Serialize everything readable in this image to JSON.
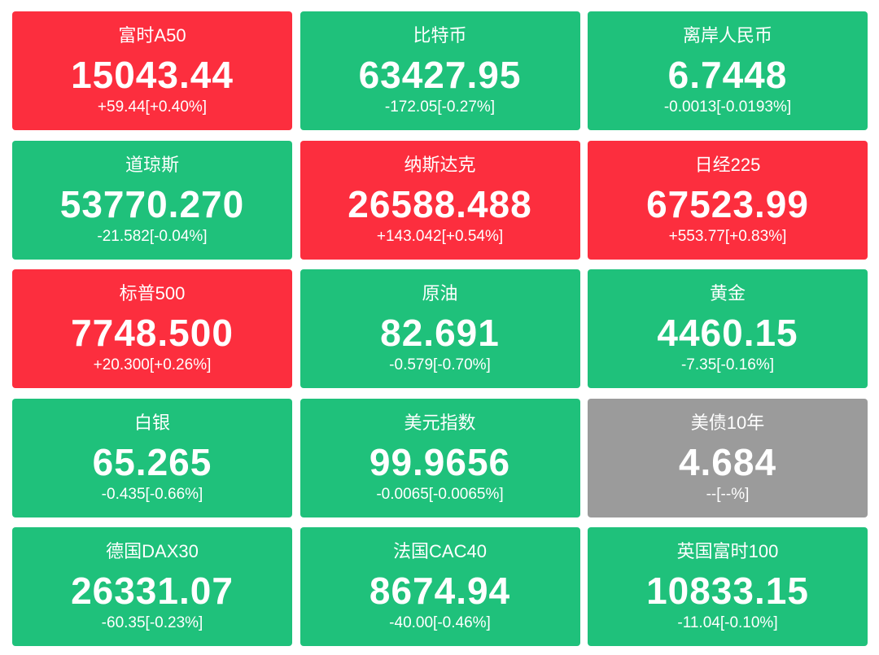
{
  "tiles": [
    {
      "name": "富时A50",
      "price": "15043.44",
      "change": "+59.44[+0.40%]",
      "color": "#fc2e3e"
    },
    {
      "name": "比特币",
      "price": "63427.95",
      "change": "-172.05[-0.27%]",
      "color": "#1fc17b"
    },
    {
      "name": "离岸人民币",
      "price": "6.7448",
      "change": "-0.0013[-0.0193%]",
      "color": "#1fc17b"
    },
    {
      "name": "道琼斯",
      "price": "53770.270",
      "change": "-21.582[-0.04%]",
      "color": "#1fc17b"
    },
    {
      "name": "纳斯达克",
      "price": "26588.488",
      "change": "+143.042[+0.54%]",
      "color": "#fc2e3e"
    },
    {
      "name": "日经225",
      "price": "67523.99",
      "change": "+553.77[+0.83%]",
      "color": "#fc2e3e"
    },
    {
      "name": "标普500",
      "price": "7748.500",
      "change": "+20.300[+0.26%]",
      "color": "#fc2e3e"
    },
    {
      "name": "原油",
      "price": "82.691",
      "change": "-0.579[-0.70%]",
      "color": "#1fc17b"
    },
    {
      "name": "黄金",
      "price": "4460.15",
      "change": "-7.35[-0.16%]",
      "color": "#1fc17b"
    },
    {
      "name": "白银",
      "price": "65.265",
      "change": "-0.435[-0.66%]",
      "color": "#1fc17b"
    },
    {
      "name": "美元指数",
      "price": "99.9656",
      "change": "-0.0065[-0.0065%]",
      "color": "#1fc17b"
    },
    {
      "name": "美债10年",
      "price": "4.684",
      "change": "--[--%]",
      "color": "#9b9b9b"
    },
    {
      "name": "德国DAX30",
      "price": "26331.07",
      "change": "-60.35[-0.23%]",
      "color": "#1fc17b"
    },
    {
      "name": "法国CAC40",
      "price": "8674.94",
      "change": "-40.00[-0.46%]",
      "color": "#1fc17b"
    },
    {
      "name": "英国富时100",
      "price": "10833.15",
      "change": "-11.04[-0.10%]",
      "color": "#1fc17b"
    }
  ]
}
